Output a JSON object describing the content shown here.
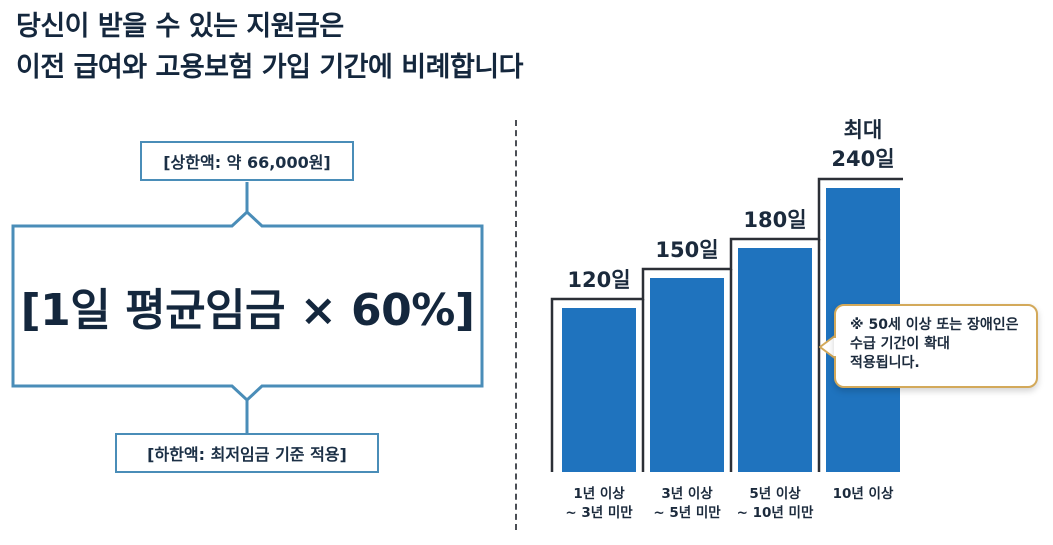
{
  "headline": {
    "line1": "당신이 받을 수 있는 지원금은",
    "line2": "이전 급여와 고용보험 가입 기간에 비례합니다"
  },
  "formula": {
    "upper_limit": "[상한액: 약 66,000원]",
    "main": "[1일 평균임금 × 60%]",
    "lower_limit": "[하한액: 최저임금 기준 적용]"
  },
  "chart_data": {
    "type": "bar",
    "categories": [
      [
        "1년 이상",
        "~ 3년 미만"
      ],
      [
        "3년 이상",
        "~ 5년 미만"
      ],
      [
        "5년 이상",
        "~ 10년 미만"
      ],
      [
        "10년 이상"
      ]
    ],
    "values": [
      120,
      150,
      180,
      240
    ],
    "value_labels": [
      "120일",
      "150일",
      "180일",
      "240일"
    ],
    "max_prefix": "최대",
    "bar_color": "#1f73be",
    "step_line_color": "#2b2f36"
  },
  "callout": {
    "line1": "※ 50세 이상 또는 장애인은",
    "line2": "수급 기간이 확대",
    "line3": "적용됩니다."
  },
  "colors": {
    "frame": "#4a8db8",
    "callout_border": "#d3a95a",
    "text": "#14273d"
  }
}
